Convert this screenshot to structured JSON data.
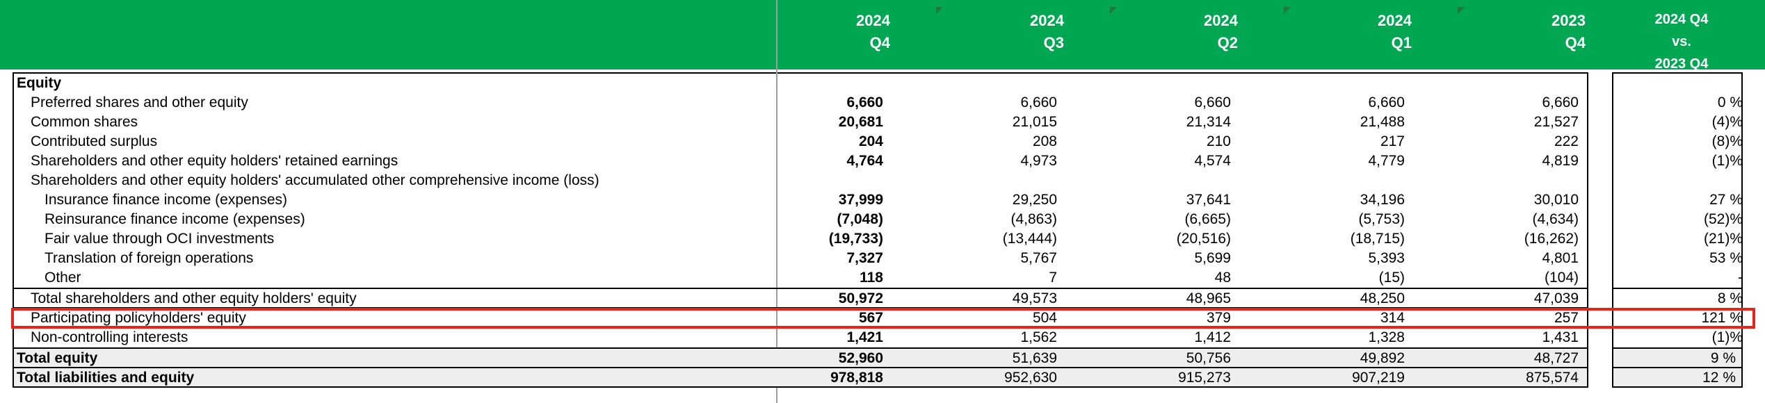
{
  "header": {
    "columns": [
      {
        "line1": "2024",
        "line2": "Q4"
      },
      {
        "line1": "2024",
        "line2": "Q3"
      },
      {
        "line1": "2024",
        "line2": "Q2"
      },
      {
        "line1": "2024",
        "line2": "Q1"
      },
      {
        "line1": "2023",
        "line2": "Q4"
      }
    ],
    "variance": {
      "line1": "2024 Q4",
      "line2": "vs.",
      "line3": "2023 Q4"
    }
  },
  "section_title": "Equity",
  "rows": [
    {
      "label": "Preferred shares and other equity",
      "values": [
        "6,660",
        "6,660",
        "6,660",
        "6,660",
        "6,660"
      ],
      "change": "0 %"
    },
    {
      "label": "Common shares",
      "values": [
        "20,681",
        "21,015",
        "21,314",
        "21,488",
        "21,527"
      ],
      "change": "(4)%"
    },
    {
      "label": "Contributed surplus",
      "values": [
        "204",
        "208",
        "210",
        "217",
        "222"
      ],
      "change": "(8)%"
    },
    {
      "label": "Shareholders and other equity holders' retained earnings",
      "values": [
        "4,764",
        "4,973",
        "4,574",
        "4,779",
        "4,819"
      ],
      "change": "(1)%"
    },
    {
      "label": "Shareholders and other equity holders' accumulated other comprehensive income (loss)"
    },
    {
      "label": "Insurance finance income (expenses)",
      "values": [
        "37,999",
        "29,250",
        "37,641",
        "34,196",
        "30,010"
      ],
      "change": "27 %"
    },
    {
      "label": "Reinsurance finance income (expenses)",
      "values": [
        "(7,048)",
        "(4,863)",
        "(6,665)",
        "(5,753)",
        "(4,634)"
      ],
      "change": "(52)%"
    },
    {
      "label": "Fair value through OCI investments",
      "values": [
        "(19,733)",
        "(13,444)",
        "(20,516)",
        "(18,715)",
        "(16,262)"
      ],
      "change": "(21)%"
    },
    {
      "label": "Translation of foreign operations",
      "values": [
        "7,327",
        "5,767",
        "5,699",
        "5,393",
        "4,801"
      ],
      "change": "53 %"
    },
    {
      "label": "Other",
      "values": [
        "118",
        "7",
        "48",
        "(15)",
        "(104)"
      ],
      "change": "-"
    },
    {
      "label": "Total shareholders and other equity holders' equity",
      "values": [
        "50,972",
        "49,573",
        "48,965",
        "48,250",
        "47,039"
      ],
      "change": "8 %"
    },
    {
      "label": "Participating policyholders' equity",
      "values": [
        "567",
        "504",
        "379",
        "314",
        "257"
      ],
      "change": "121 %"
    },
    {
      "label": "Non-controlling interests",
      "values": [
        "1,421",
        "1,562",
        "1,412",
        "1,328",
        "1,431"
      ],
      "change": "(1)%"
    },
    {
      "label": "Total equity",
      "values": [
        "52,960",
        "51,639",
        "50,756",
        "49,892",
        "48,727"
      ],
      "change": "9 %"
    },
    {
      "label": "Total liabilities and equity",
      "values": [
        "978,818",
        "952,630",
        "915,273",
        "907,219",
        "875,574"
      ],
      "change": "12 %"
    }
  ],
  "colors": {
    "header_bg": "#00a651",
    "highlight_border": "#e8231a",
    "total_shade": "#eeeeee"
  }
}
